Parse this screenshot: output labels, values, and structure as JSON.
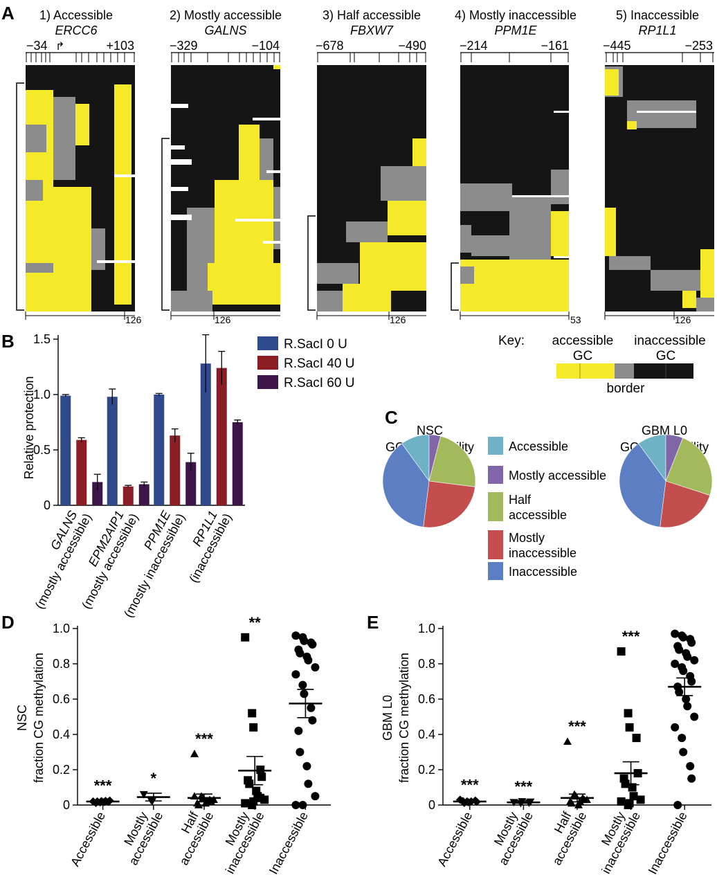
{
  "panel_letters": {
    "A": "A",
    "B": "B",
    "C": "C",
    "D": "D",
    "E": "E"
  },
  "panel_a": {
    "maps": [
      {
        "title": "1) Accessible",
        "gene": "ERCC6",
        "left_pos": "−34",
        "right_pos": "+103",
        "count_label": "126",
        "tss_marker": "↱"
      },
      {
        "title": "2) Mostly accessible",
        "gene": "GALNS",
        "left_pos": "−329",
        "right_pos": "−104",
        "count_label": "126"
      },
      {
        "title": "3) Half accessible",
        "gene": "FBXW7",
        "left_pos": "−678",
        "right_pos": "−490",
        "count_label": "126"
      },
      {
        "title": "4) Mostly inaccessible",
        "gene": "PPM1E",
        "left_pos": "−214",
        "right_pos": "−161",
        "count_label": "53"
      },
      {
        "title": "5) Inaccessible",
        "gene": "RP1L1",
        "left_pos": "−445",
        "right_pos": "−253",
        "count_label": "126"
      }
    ],
    "key": {
      "label": "Key:",
      "accessible": "accessible",
      "inaccessible": "inaccessible",
      "gc1": "GC",
      "gc2": "GC",
      "border": "border"
    },
    "colors": {
      "accessible": "#f5ea2a",
      "border": "#8c8c8c",
      "inaccessible": "#151515"
    }
  },
  "chart_data": [
    {
      "type": "bar",
      "id": "B",
      "ylabel": "Relative protection",
      "ylim": [
        0,
        1.5
      ],
      "yticks": [
        "0",
        "0.5",
        "1.0",
        "1.5"
      ],
      "categories": [
        "GALNS",
        "EPM2AIP1",
        "PPM1E",
        "RP1L1"
      ],
      "category_sublabels": [
        "(mostly accessible)",
        "(mostly accessible)",
        "(mostly inaccessible)",
        "(inaccessible)"
      ],
      "series": [
        {
          "name": "R.SacI   0 U",
          "color": "#2e4a8c",
          "values": [
            0.99,
            0.98,
            1.0,
            1.28
          ],
          "errors": [
            0.01,
            0.07,
            0.01,
            0.26
          ]
        },
        {
          "name": "R.SacI 40 U",
          "color": "#8a1e24",
          "values": [
            0.59,
            0.17,
            0.63,
            1.24
          ],
          "errors": [
            0.02,
            0.01,
            0.06,
            0.15
          ]
        },
        {
          "name": "R.SacI 60 U",
          "color": "#3e1548",
          "values": [
            0.21,
            0.19,
            0.39,
            0.75
          ],
          "errors": [
            0.07,
            0.02,
            0.08,
            0.02
          ]
        }
      ]
    },
    {
      "type": "pie",
      "id": "C",
      "pies": [
        {
          "title_line1": "NSC",
          "title_line2": "GC accessibility",
          "values": [
            10,
            4,
            23,
            25,
            38
          ]
        },
        {
          "title_line1": "GBM L0",
          "title_line2": "GC accessibility",
          "values": [
            10,
            6,
            24,
            22,
            38
          ]
        }
      ],
      "categories": [
        "Accessible",
        "Mostly accessible",
        "Half accessible",
        "Mostly inaccessible",
        "Inaccessible"
      ],
      "legend_lines": [
        [
          "Accessible"
        ],
        [
          "Mostly accessible"
        ],
        [
          "Half",
          "accessible"
        ],
        [
          "Mostly",
          "inaccessible"
        ],
        [
          "Inaccessible"
        ]
      ],
      "colors": [
        "#6fb2c6",
        "#8066a8",
        "#a3ba5c",
        "#c44e4d",
        "#5b7fc2"
      ]
    },
    {
      "type": "scatter",
      "id": "D",
      "ylabel_line1": "NSC",
      "ylabel_line2": "fraction CG methylation",
      "ylim": [
        0,
        1.0
      ],
      "yticks": [
        "0",
        "0.2",
        "0.4",
        "0.6",
        "0.8",
        "1.0"
      ],
      "categories": [
        "Accessible",
        "Mostly accessible",
        "Half accessible",
        "Mostly inaccessible",
        "Inaccessible"
      ],
      "xtick_lines": [
        [
          "Accessible"
        ],
        [
          "Mostly",
          "accessible"
        ],
        [
          "Half",
          "accessible"
        ],
        [
          "Mostly",
          "inaccessible"
        ],
        [
          "Inaccessible"
        ]
      ],
      "markers": [
        "diamond",
        "triangle-down",
        "triangle",
        "square",
        "circle"
      ],
      "significance": [
        "***",
        "*",
        "***",
        "**",
        ""
      ],
      "means": [
        0.02,
        0.045,
        0.04,
        0.195,
        0.575
      ],
      "sems": [
        0.004,
        0.022,
        0.022,
        0.08,
        0.08
      ],
      "points": [
        [
          0.02,
          0.015,
          0.022,
          0.018,
          0.025,
          0.012,
          0.02,
          0.017,
          0.023
        ],
        [
          0.06,
          0.03,
          0.02
        ],
        [
          0.29,
          0.05,
          0.04,
          0.03,
          0.02,
          0.01,
          0.0,
          0.01,
          0.02,
          0.03,
          0.05
        ],
        [
          0.95,
          0.52,
          0.44,
          0.2,
          0.16,
          0.14,
          0.12,
          0.08,
          0.05,
          0.03,
          0.01,
          0.0,
          0.02,
          0.04
        ],
        [
          0.96,
          0.95,
          0.93,
          0.92,
          0.91,
          0.88,
          0.86,
          0.84,
          0.82,
          0.78,
          0.74,
          0.68,
          0.63,
          0.55,
          0.48,
          0.42,
          0.3,
          0.22,
          0.12,
          0.05,
          0.0,
          0.0
        ]
      ]
    },
    {
      "type": "scatter",
      "id": "E",
      "ylabel_line1": "GBM L0",
      "ylabel_line2": "fraction CG methylation",
      "ylim": [
        0,
        1.0
      ],
      "yticks": [
        "0",
        "0.2",
        "0.4",
        "0.6",
        "0.8",
        "1.0"
      ],
      "categories": [
        "Accessible",
        "Mostly accessible",
        "Half accessible",
        "Mostly inaccessible",
        "Inaccessible"
      ],
      "xtick_lines": [
        [
          "Accessible"
        ],
        [
          "Mostly",
          "accessible"
        ],
        [
          "Half",
          "accessible"
        ],
        [
          "Mostly",
          "inaccessible"
        ],
        [
          "Inaccessible"
        ]
      ],
      "markers": [
        "diamond",
        "triangle-down",
        "triangle",
        "square",
        "circle"
      ],
      "significance": [
        "***",
        "***",
        "***",
        "***",
        ""
      ],
      "means": [
        0.02,
        0.015,
        0.04,
        0.18,
        0.67
      ],
      "sems": [
        0.004,
        0.005,
        0.022,
        0.065,
        0.05
      ],
      "points": [
        [
          0.03,
          0.02,
          0.015,
          0.025,
          0.018,
          0.022,
          0.012,
          0.02
        ],
        [
          0.015,
          0.01,
          0.02,
          0.012,
          0.018
        ],
        [
          0.36,
          0.06,
          0.05,
          0.04,
          0.03,
          0.02,
          0.01,
          0.0,
          0.02,
          0.03
        ],
        [
          0.87,
          0.52,
          0.44,
          0.38,
          0.18,
          0.15,
          0.12,
          0.1,
          0.05,
          0.03,
          0.02,
          0.0,
          0.01
        ],
        [
          0.97,
          0.96,
          0.95,
          0.94,
          0.92,
          0.9,
          0.88,
          0.86,
          0.84,
          0.82,
          0.8,
          0.78,
          0.76,
          0.73,
          0.7,
          0.67,
          0.64,
          0.6,
          0.56,
          0.5,
          0.44,
          0.38,
          0.3,
          0.22,
          0.15,
          0.0
        ]
      ]
    }
  ]
}
